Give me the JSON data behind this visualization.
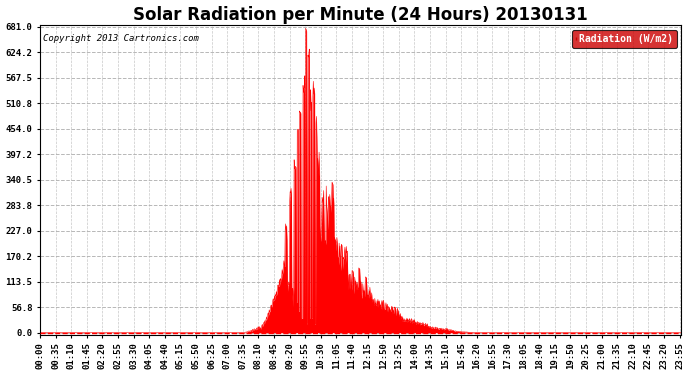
{
  "title": "Solar Radiation per Minute (24 Hours) 20130131",
  "copyright_text": "Copyright 2013 Cartronics.com",
  "legend_label": "Radiation (W/m2)",
  "yticks": [
    0.0,
    56.8,
    113.5,
    170.2,
    227.0,
    283.8,
    340.5,
    397.2,
    454.0,
    510.8,
    567.5,
    624.2,
    681.0
  ],
  "ymax": 681.0,
  "bar_color": "#ff0000",
  "background_color": "#ffffff",
  "plot_bg_color": "#ffffff",
  "grid_color": "#b0b0b0",
  "legend_bg": "#cc0000",
  "legend_text_color": "#ffffff",
  "title_fontsize": 12,
  "tick_label_fontsize": 6.5,
  "sunrise_min": 455,
  "sunset_min": 998,
  "peak_min": 595,
  "peak_val": 681.0
}
